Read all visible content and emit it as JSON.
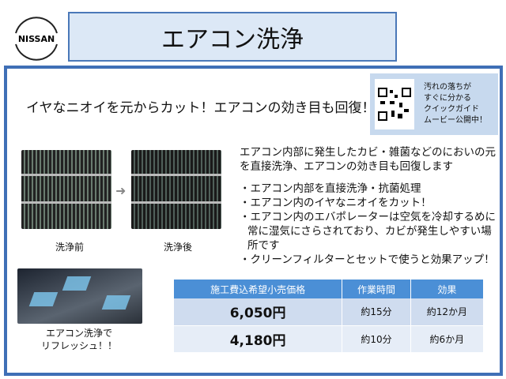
{
  "brand": "NISSAN",
  "title": "エアコン洗浄",
  "headline": "イヤなニオイを元からカット！エアコンの効き目も回復！",
  "qr": {
    "icon": "qr-code-icon",
    "lines": [
      "汚れの落ちが",
      "すぐに分かる",
      "クイックガイド",
      "ムービー公開中！"
    ]
  },
  "images": {
    "before_label": "洗浄前",
    "after_label": "洗浄後",
    "car_caption": [
      "エアコン洗浄で",
      "リフレッシュ！！"
    ]
  },
  "description": {
    "intro": "エアコン内部に発生したカビ・雑菌などのにおいの元を直接洗浄、エアコンの効き目も回復します",
    "bullets": [
      "・エアコン内部を直接洗浄・抗菌処理",
      "・エアコン内のイヤなニオイをカット！",
      "・エアコン内のエバポレーターは空気を冷却するめに常に湿気にさらされており、カビが発生しやすい場所です",
      "・クリーンフィルターとセットで使うと効果アップ！"
    ]
  },
  "table": {
    "headers": [
      "施工費込希望小売価格",
      "作業時間",
      "効果"
    ],
    "rows": [
      [
        "6,050円",
        "約15分",
        "約12か月"
      ],
      [
        "4,180円",
        "約10分",
        "約6か月"
      ]
    ]
  },
  "colors": {
    "accent": "#3f6fb6",
    "table_header": "#4b8fd6"
  }
}
